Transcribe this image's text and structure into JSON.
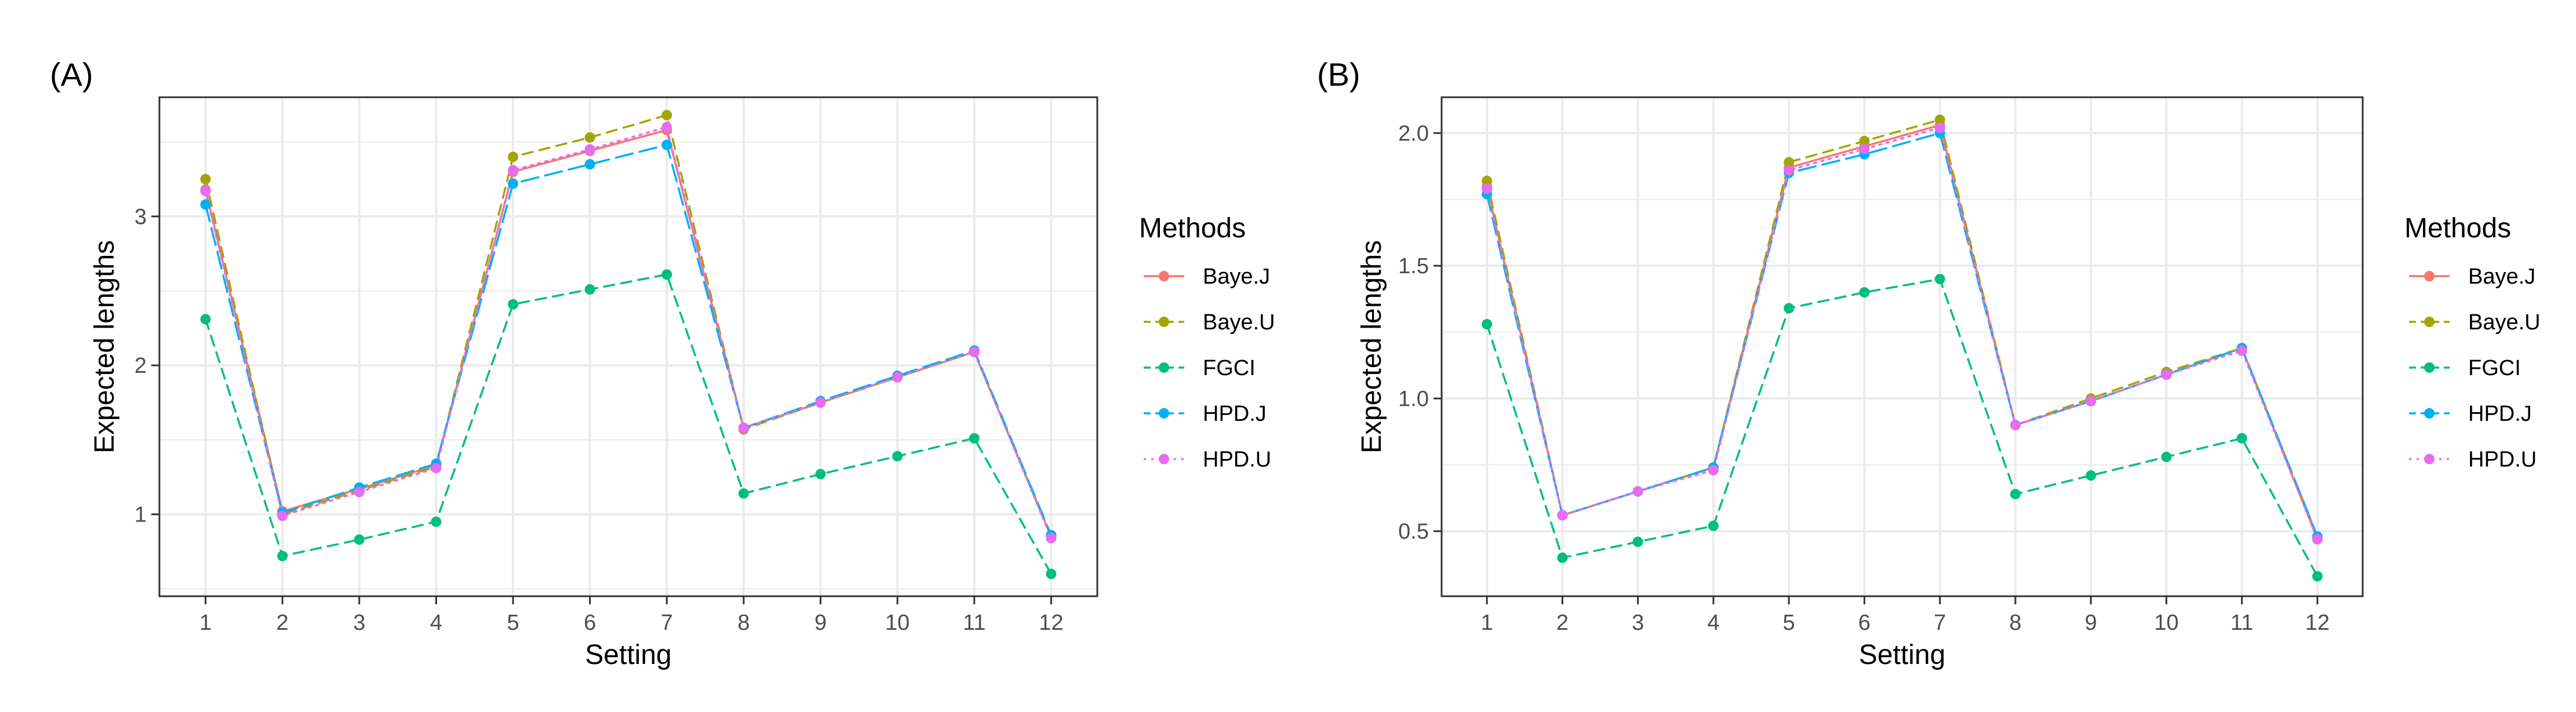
{
  "chart_data": [
    {
      "type": "line",
      "panel_label": "(A)",
      "xlabel": "Setting",
      "ylabel": "Expected lengths",
      "categories": [
        "1",
        "2",
        "3",
        "4",
        "5",
        "6",
        "7",
        "8",
        "9",
        "10",
        "11",
        "12"
      ],
      "ylim": [
        0.45,
        3.8
      ],
      "yticks": [
        1,
        2,
        3
      ],
      "ytick_labels": [
        "1",
        "2",
        "3"
      ],
      "grid": true,
      "legend": {
        "title": "Methods",
        "position": "right"
      },
      "series": [
        {
          "name": "Baye.J",
          "color": "#F8766D",
          "dash": "solid",
          "values": [
            3.18,
            1.02,
            1.17,
            1.33,
            3.3,
            3.44,
            3.58,
            1.58,
            1.75,
            1.92,
            2.09,
            0.85
          ]
        },
        {
          "name": "Baye.U",
          "color": "#A3A500",
          "dash": "dashed",
          "values": [
            3.25,
            1.0,
            1.16,
            1.32,
            3.4,
            3.53,
            3.68,
            1.57,
            1.75,
            1.92,
            2.09,
            0.85
          ]
        },
        {
          "name": "FGCI",
          "color": "#00BF7D",
          "dash": "dashed",
          "values": [
            2.31,
            0.72,
            0.83,
            0.95,
            2.41,
            2.51,
            2.61,
            1.14,
            1.27,
            1.39,
            1.51,
            0.6
          ]
        },
        {
          "name": "HPD.J",
          "color": "#00B0F6",
          "dash": "longdash",
          "values": [
            3.08,
            1.01,
            1.18,
            1.34,
            3.22,
            3.35,
            3.48,
            1.58,
            1.76,
            1.93,
            2.1,
            0.86
          ]
        },
        {
          "name": "HPD.U",
          "color": "#E76BF3",
          "dash": "dotted",
          "values": [
            3.17,
            0.99,
            1.15,
            1.31,
            3.31,
            3.45,
            3.6,
            1.58,
            1.75,
            1.92,
            2.09,
            0.84
          ]
        }
      ]
    },
    {
      "type": "line",
      "panel_label": "(B)",
      "xlabel": "Setting",
      "ylabel": "Expected lengths",
      "categories": [
        "1",
        "2",
        "3",
        "4",
        "5",
        "6",
        "7",
        "8",
        "9",
        "10",
        "11",
        "12"
      ],
      "ylim": [
        0.255,
        2.135
      ],
      "yticks": [
        0.5,
        1.0,
        1.5,
        2.0
      ],
      "ytick_labels": [
        "0.5",
        "1.0",
        "1.5",
        "2.0"
      ],
      "grid": true,
      "legend": {
        "title": "Methods",
        "position": "right"
      },
      "series": [
        {
          "name": "Baye.J",
          "color": "#F8766D",
          "dash": "solid",
          "values": [
            1.8,
            0.56,
            0.65,
            0.74,
            1.87,
            1.95,
            2.03,
            0.9,
            0.99,
            1.09,
            1.19,
            0.47
          ]
        },
        {
          "name": "Baye.U",
          "color": "#A3A500",
          "dash": "dashed",
          "values": [
            1.82,
            0.56,
            0.65,
            0.74,
            1.89,
            1.97,
            2.05,
            0.9,
            1.0,
            1.1,
            1.19,
            0.48
          ]
        },
        {
          "name": "FGCI",
          "color": "#00BF7D",
          "dash": "dashed",
          "values": [
            1.28,
            0.4,
            0.46,
            0.52,
            1.34,
            1.4,
            1.45,
            0.64,
            0.71,
            0.78,
            0.85,
            0.33
          ]
        },
        {
          "name": "HPD.J",
          "color": "#00B0F6",
          "dash": "longdash",
          "values": [
            1.77,
            0.56,
            0.65,
            0.74,
            1.85,
            1.92,
            2.0,
            0.9,
            0.99,
            1.09,
            1.19,
            0.48
          ]
        },
        {
          "name": "HPD.U",
          "color": "#E76BF3",
          "dash": "dotted",
          "values": [
            1.79,
            0.56,
            0.65,
            0.73,
            1.86,
            1.94,
            2.02,
            0.9,
            0.99,
            1.09,
            1.18,
            0.47
          ]
        }
      ]
    }
  ]
}
